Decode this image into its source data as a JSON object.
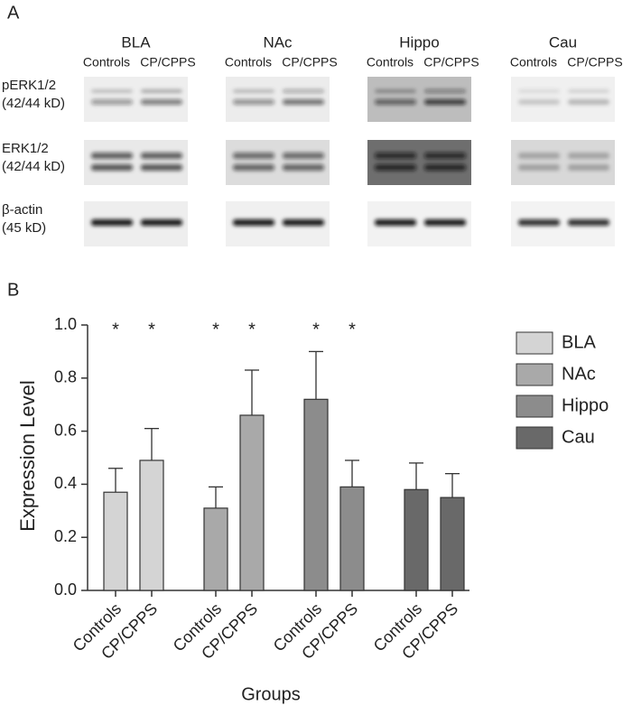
{
  "panel_a": {
    "label": "A",
    "regions": [
      "BLA",
      "NAc",
      "Hippo",
      "Cau"
    ],
    "lanes": [
      "Controls",
      "CP/CPPS"
    ],
    "rows": [
      {
        "name": "pERK1/2",
        "size": "(42/44 kD)"
      },
      {
        "name": "ERK1/2",
        "size": "(42/44 kD)"
      },
      {
        "name": "β-actin",
        "size": "(45 kD)"
      }
    ]
  },
  "chart_data": {
    "type": "bar",
    "panel_label": "B",
    "ylabel": "Expression Level",
    "xlabel": "Groups",
    "categories": [
      "Controls",
      "CP/CPPS"
    ],
    "ylim": [
      0,
      1.0
    ],
    "yticks": [
      {
        "value": 0,
        "label": "0.0"
      },
      {
        "value": 0.2,
        "label": "0.2"
      },
      {
        "value": 0.4,
        "label": "0.4"
      },
      {
        "value": 0.6,
        "label": "0.6"
      },
      {
        "value": 0.8,
        "label": "0.8"
      },
      {
        "value": 1.0,
        "label": "1.0"
      }
    ],
    "series": [
      {
        "name": "BLA",
        "color": "#d4d4d4",
        "values": [
          0.37,
          0.49
        ],
        "errors": [
          0.09,
          0.12
        ],
        "significance": [
          "*",
          "*"
        ]
      },
      {
        "name": "NAc",
        "color": "#a9a9a9",
        "values": [
          0.31,
          0.66
        ],
        "errors": [
          0.08,
          0.17
        ],
        "significance": [
          "*",
          "*"
        ]
      },
      {
        "name": "Hippo",
        "color": "#8c8c8c",
        "values": [
          0.72,
          0.39
        ],
        "errors": [
          0.18,
          0.1
        ],
        "significance": [
          "*",
          "*"
        ]
      },
      {
        "name": "Cau",
        "color": "#696969",
        "values": [
          0.38,
          0.35
        ],
        "errors": [
          0.1,
          0.09
        ]
      }
    ],
    "legend": "right"
  }
}
